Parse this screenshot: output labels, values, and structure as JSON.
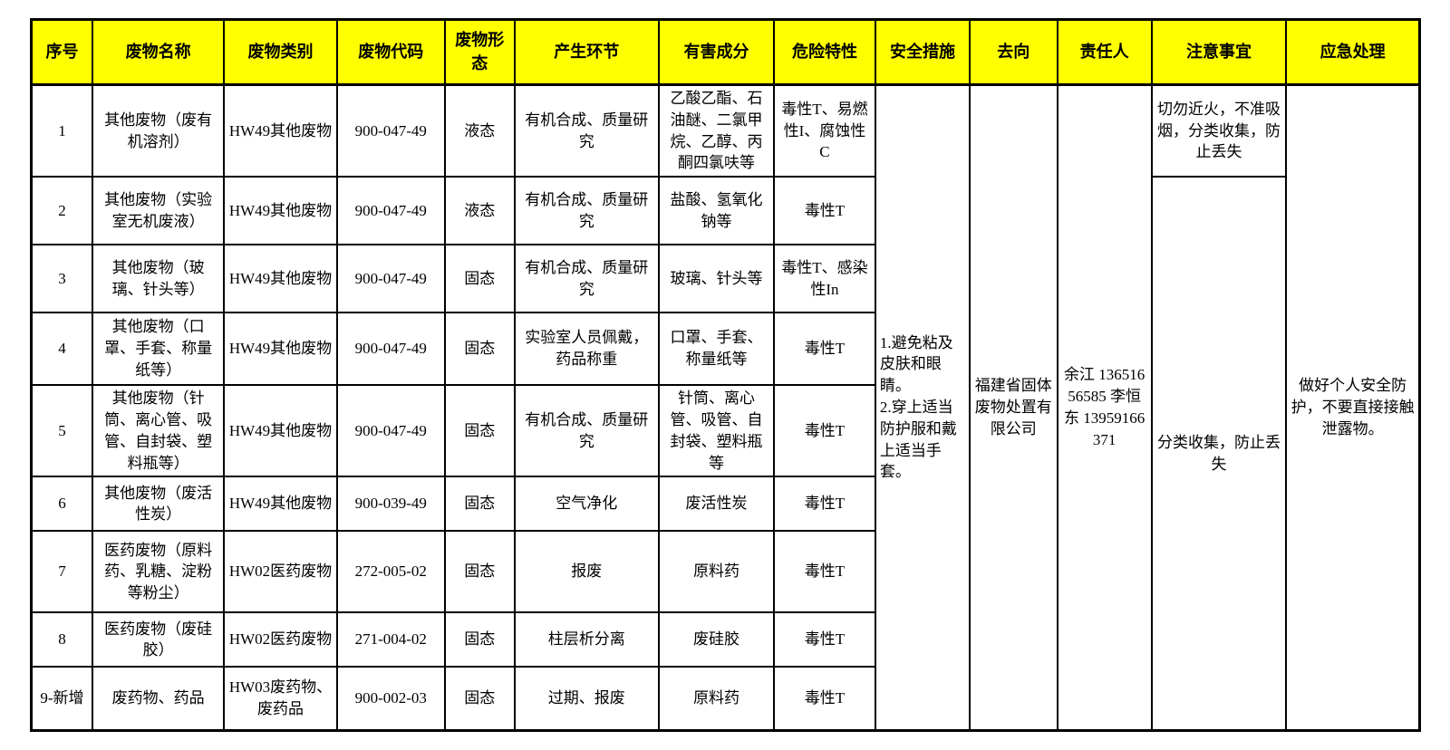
{
  "colors": {
    "header_bg": "#FFFF00",
    "border": "#000000",
    "text": "#000000"
  },
  "table": {
    "headers": [
      "序号",
      "废物名称",
      "废物类别",
      "废物代码",
      "废物形态",
      "产生环节",
      "有害成分",
      "危险特性",
      "安全措施",
      "去向",
      "责任人",
      "注意事宜",
      "应急处理"
    ],
    "cell_names": [
      "serial-cell",
      "waste-name-cell",
      "category-cell",
      "code-cell",
      "form-cell",
      "source-cell",
      "components-cell",
      "hazard-cell"
    ],
    "rows": [
      {
        "cells": [
          "1",
          "其他废物（废有机溶剂）",
          "HW49其他废物",
          "900-047-49",
          "液态",
          "有机合成、质量研究",
          "乙酸乙酯、石油醚、二氯甲烷、乙醇、丙酮四氯呋等",
          "毒性T、易燃性I、腐蚀性C"
        ]
      },
      {
        "cells": [
          "2",
          "其他废物（实验室无机废液）",
          "HW49其他废物",
          "900-047-49",
          "液态",
          "有机合成、质量研究",
          "盐酸、氢氧化钠等",
          "毒性T"
        ]
      },
      {
        "cells": [
          "3",
          "其他废物（玻璃、针头等）",
          "HW49其他废物",
          "900-047-49",
          "固态",
          "有机合成、质量研究",
          "玻璃、针头等",
          "毒性T、感染性In"
        ]
      },
      {
        "cells": [
          "4",
          "其他废物（口罩、手套、称量纸等）",
          "HW49其他废物",
          "900-047-49",
          "固态",
          "实验室人员佩戴，药品称重",
          "口罩、手套、称量纸等",
          "毒性T"
        ]
      },
      {
        "cells": [
          "5",
          "其他废物（针筒、离心管、吸管、自封袋、塑料瓶等）",
          "HW49其他废物",
          "900-047-49",
          "固态",
          "有机合成、质量研究",
          "针筒、离心管、吸管、自封袋、塑料瓶等",
          "毒性T"
        ]
      },
      {
        "cells": [
          "6",
          "其他废物（废活性炭）",
          "HW49其他废物",
          "900-039-49",
          "固态",
          "空气净化",
          "废活性炭",
          "毒性T"
        ]
      },
      {
        "cells": [
          "7",
          "医药废物（原料药、乳糖、淀粉等粉尘）",
          "HW02医药废物",
          "272-005-02",
          "固态",
          "报废",
          "原料药",
          "毒性T"
        ]
      },
      {
        "cells": [
          "8",
          "医药废物（废硅胶）",
          "HW02医药废物",
          "271-004-02",
          "固态",
          "柱层析分离",
          "废硅胶",
          "毒性T"
        ]
      },
      {
        "cells": [
          "9-新增",
          "废药物、药品",
          "HW03废药物、废药品",
          "900-002-03",
          "固态",
          "过期、报废",
          "原料药",
          "毒性T"
        ]
      }
    ],
    "merged": {
      "safety_measures": "1.避免粘及皮肤和眼睛。\n2.穿上适当防护服和戴上适当手套。",
      "destination": "福建省固体废物处置有限公司",
      "responsible": "余江 13651656585 李恒东 13959166371",
      "notes_row1": "切勿近火，不准吸烟，分类收集，防止丢失",
      "notes_rest": "分类收集，防止丢失",
      "emergency": "做好个人安全防护，不要直接接触泄露物。"
    }
  }
}
